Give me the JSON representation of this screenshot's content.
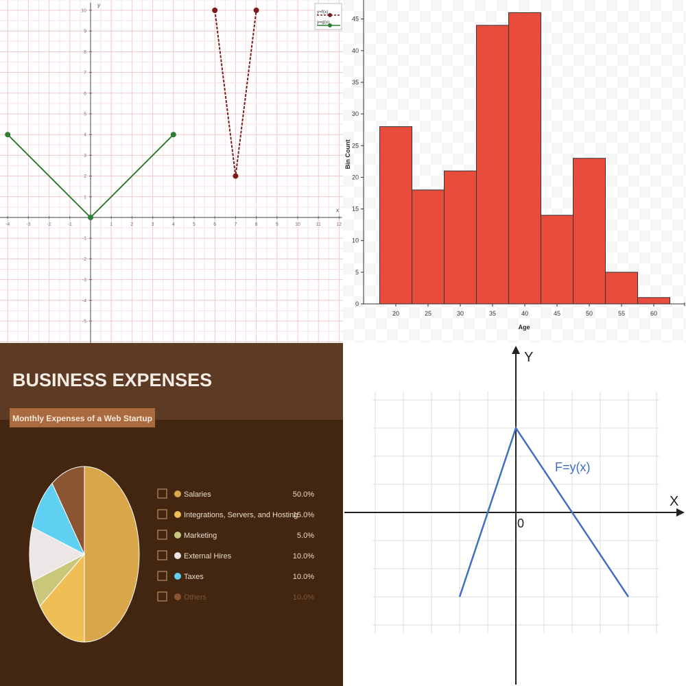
{
  "chart_data": [
    {
      "type": "line",
      "xlim": [
        -4,
        12
      ],
      "ylim": [
        -6,
        10
      ],
      "x_ticks": [
        -4,
        -3,
        -2,
        -1,
        1,
        2,
        3,
        4,
        5,
        6,
        7,
        8,
        9,
        10,
        11,
        12
      ],
      "y_ticks": [
        10,
        9,
        8,
        7,
        6,
        5,
        4,
        3,
        2,
        1,
        -1,
        -2,
        -3,
        -4,
        -5
      ],
      "xlabel": "x",
      "ylabel": "y",
      "grid": true,
      "legend_position": "top-right",
      "series": [
        {
          "name": "y=f(x)",
          "color": "#7b1c1c",
          "style": "dashed",
          "points": [
            [
              6,
              10
            ],
            [
              7,
              2
            ],
            [
              8,
              10
            ]
          ]
        },
        {
          "name": "y=g(x)",
          "color": "#2e7d32",
          "style": "solid",
          "points": [
            [
              -4,
              4
            ],
            [
              0,
              0
            ],
            [
              4,
              4
            ]
          ]
        }
      ]
    },
    {
      "type": "bar",
      "xlabel": "Age",
      "ylabel": "Bin Count",
      "bin_edges": [
        17.5,
        22.5,
        27.5,
        32.5,
        37.5,
        42.5,
        47.5,
        52.5,
        57.5,
        62.5
      ],
      "values": [
        28,
        18,
        21,
        44,
        46,
        14,
        23,
        5,
        1
      ],
      "x_ticks": [
        20,
        25,
        30,
        35,
        40,
        45,
        50,
        55,
        60
      ],
      "y_ticks": [
        0,
        5,
        10,
        15,
        20,
        25,
        30,
        35,
        40,
        45
      ],
      "xlim": [
        15,
        65
      ],
      "ylim": [
        0,
        48
      ],
      "bar_color": "#e74c3c",
      "grid": false
    },
    {
      "type": "pie",
      "title": "BUSINESS EXPENSES",
      "subtitle": "Monthly Expenses of a Web Startup",
      "legend_position": "right",
      "slices": [
        {
          "label": "Salaries",
          "value": 50.0,
          "value_label": "50.0%",
          "color": "#d9a64a",
          "icon": "money-icon"
        },
        {
          "label": "Integrations, Servers, and Hosting",
          "value": 15.0,
          "value_label": "15.0%",
          "color": "#efbf55",
          "icon": "cloud-icon"
        },
        {
          "label": "Marketing",
          "value": 5.0,
          "value_label": "5.0%",
          "color": "#c9c77a",
          "icon": "megaphone-icon"
        },
        {
          "label": "External Hires",
          "value": 10.0,
          "value_label": "10.0%",
          "color": "#ece6e6",
          "icon": "people-icon"
        },
        {
          "label": "Taxes",
          "value": 10.0,
          "value_label": "10.0%",
          "color": "#5fd0f2",
          "icon": "calculator-icon"
        },
        {
          "label": "Others",
          "value": 10.0,
          "value_label": "10.0%",
          "color": "#8a5530",
          "icon": "ellipsis-icon"
        }
      ]
    },
    {
      "type": "line",
      "xlabel": "X",
      "ylabel": "Y",
      "origin_label": "0",
      "grid": true,
      "series": [
        {
          "name": "F=y(x)",
          "color": "#3f6fc2",
          "points": [
            [
              -2,
              -3
            ],
            [
              0,
              3
            ],
            [
              4,
              -3
            ]
          ]
        }
      ]
    }
  ]
}
